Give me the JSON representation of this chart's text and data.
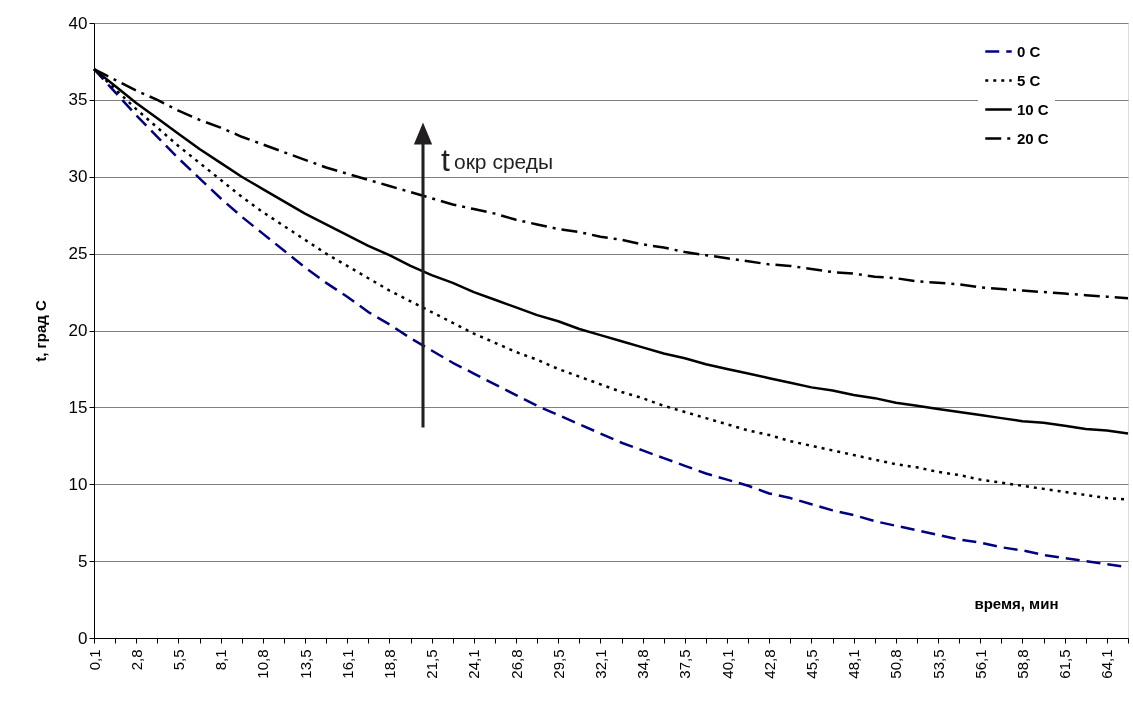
{
  "chart_data": {
    "type": "line",
    "xlabel": "время, мин",
    "ylabel": "t, град С",
    "annotations": [
      "t$_{окр среды}$"
    ],
    "categories": [
      "0,1",
      null,
      "2,8",
      null,
      "5,5",
      null,
      "8,1",
      null,
      "10,8",
      null,
      "13,5",
      null,
      "16,1",
      null,
      "18,8",
      null,
      "21,5",
      null,
      "24,1",
      null,
      "26,8",
      null,
      "29,5",
      null,
      "32,1",
      null,
      "34,8",
      null,
      "37,5",
      null,
      "40,1",
      null,
      "42,8",
      null,
      "45,5",
      null,
      "48,1",
      null,
      "50,8",
      null,
      "53,5",
      null,
      "56,1",
      null,
      "58,8",
      null,
      "61,5",
      null,
      "64,1",
      null
    ],
    "series": [
      {
        "name": "0 C",
        "color": "#000080",
        "line_style": "dashed",
        "values": [
          37.0,
          35.5,
          34.0,
          32.6,
          31.2,
          29.9,
          28.6,
          27.4,
          26.3,
          25.2,
          24.1,
          23.1,
          22.2,
          21.2,
          20.4,
          19.5,
          18.7,
          17.9,
          17.2,
          16.5,
          15.8,
          15.1,
          14.5,
          13.9,
          13.3,
          12.7,
          12.2,
          11.7,
          11.2,
          10.7,
          10.3,
          9.9,
          9.4,
          9.1,
          8.7,
          8.3,
          8.0,
          7.6,
          7.3,
          7.0,
          6.7,
          6.4,
          6.2,
          5.9,
          5.7,
          5.4,
          5.2,
          5.0,
          4.8,
          4.6
        ]
      },
      {
        "name": "5 C",
        "color": "#000000",
        "line_style": "dotted",
        "values": [
          37.0,
          35.7,
          34.4,
          33.2,
          32.0,
          30.9,
          29.8,
          28.7,
          27.7,
          26.8,
          25.9,
          25.0,
          24.2,
          23.4,
          22.6,
          21.9,
          21.2,
          20.5,
          19.8,
          19.2,
          18.6,
          18.1,
          17.5,
          17.0,
          16.5,
          16.0,
          15.6,
          15.1,
          14.7,
          14.3,
          13.9,
          13.5,
          13.2,
          12.8,
          12.5,
          12.2,
          11.9,
          11.6,
          11.3,
          11.1,
          10.8,
          10.6,
          10.3,
          10.1,
          9.9,
          9.7,
          9.5,
          9.3,
          9.1,
          9.0
        ]
      },
      {
        "name": "10 C",
        "color": "#000000",
        "line_style": "solid",
        "values": [
          37.0,
          35.9,
          34.8,
          33.8,
          32.8,
          31.8,
          30.9,
          30.0,
          29.2,
          28.4,
          27.6,
          26.9,
          26.2,
          25.5,
          24.9,
          24.2,
          23.6,
          23.1,
          22.5,
          22.0,
          21.5,
          21.0,
          20.6,
          20.1,
          19.7,
          19.3,
          18.9,
          18.5,
          18.2,
          17.8,
          17.5,
          17.2,
          16.9,
          16.6,
          16.3,
          16.1,
          15.8,
          15.6,
          15.3,
          15.1,
          14.9,
          14.7,
          14.5,
          14.3,
          14.1,
          14.0,
          13.8,
          13.6,
          13.5,
          13.3
        ]
      },
      {
        "name": "20 C",
        "color": "#000000",
        "line_style": "dashdot",
        "values": [
          37.0,
          36.3,
          35.6,
          35.0,
          34.3,
          33.7,
          33.2,
          32.6,
          32.1,
          31.6,
          31.1,
          30.6,
          30.2,
          29.8,
          29.4,
          29.0,
          28.6,
          28.2,
          27.9,
          27.6,
          27.2,
          26.9,
          26.6,
          26.4,
          26.1,
          25.9,
          25.6,
          25.4,
          25.1,
          24.9,
          24.7,
          24.5,
          24.3,
          24.2,
          24.0,
          23.8,
          23.7,
          23.5,
          23.4,
          23.2,
          23.1,
          23.0,
          22.8,
          22.7,
          22.6,
          22.5,
          22.4,
          22.3,
          22.2,
          22.1
        ]
      }
    ],
    "ylim": [
      0,
      40
    ],
    "yticks": [
      0,
      5,
      10,
      15,
      20,
      25,
      30,
      35,
      40
    ],
    "grid": "y",
    "legend": "top right",
    "marker": "none"
  }
}
